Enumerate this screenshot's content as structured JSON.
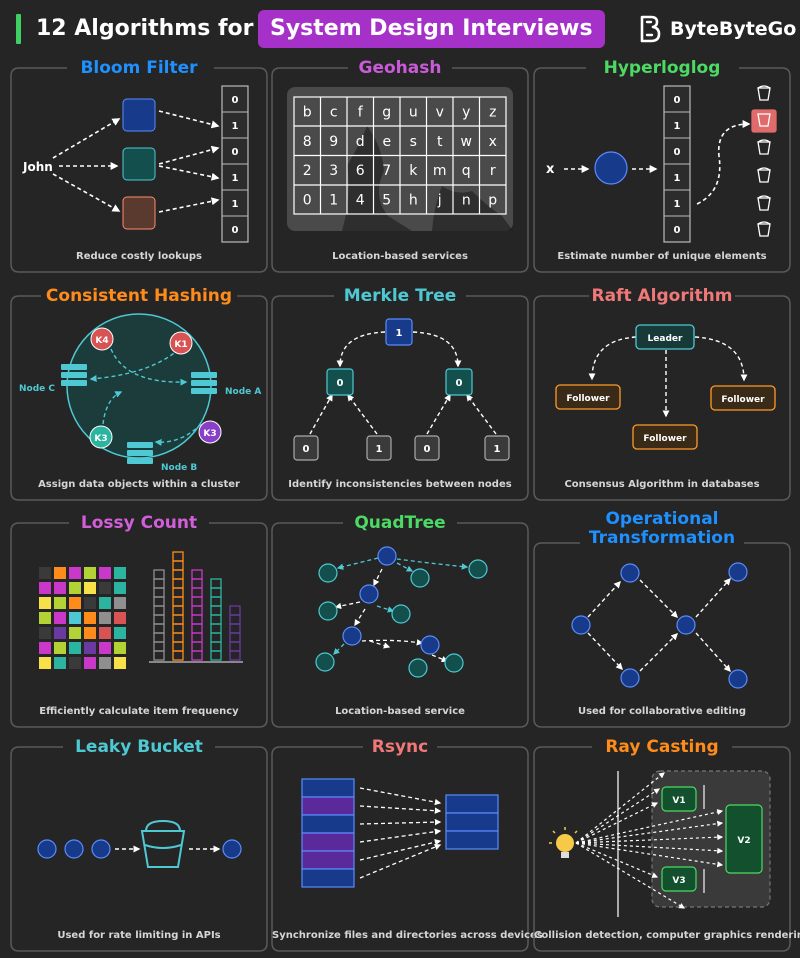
{
  "header": {
    "title_part1": "12 Algorithms for",
    "title_part2": "System Design  Interviews",
    "brand": "ByteByteGo",
    "colors": {
      "accent_bar": "#3fcf62",
      "highlight": "#a531c8"
    }
  },
  "panels": {
    "bloom": {
      "title": "Bloom Filter",
      "caption": "Reduce costly lookups",
      "input": "John",
      "bits": [
        "0",
        "1",
        "0",
        "1",
        "1",
        "0"
      ],
      "color": "#1e90ff"
    },
    "geohash": {
      "title": "Geohash",
      "caption": "Location-based services",
      "grid": [
        [
          "b",
          "c",
          "f",
          "g",
          "u",
          "v",
          "y",
          "z"
        ],
        [
          "8",
          "9",
          "d",
          "e",
          "s",
          "t",
          "w",
          "x"
        ],
        [
          "2",
          "3",
          "6",
          "7",
          "k",
          "m",
          "q",
          "r"
        ],
        [
          "0",
          "1",
          "4",
          "5",
          "h",
          "j",
          "n",
          "p"
        ]
      ],
      "color": "#c95bd9"
    },
    "hll": {
      "title": "Hyperloglog",
      "caption": "Estimate number of unique elements",
      "input": "x",
      "bits": [
        "0",
        "1",
        "0",
        "1",
        "1",
        "0"
      ],
      "color": "#4cd964"
    },
    "consistent": {
      "title": "Consistent Hashing",
      "caption": "Assign data objects within a cluster",
      "keys": [
        "K4",
        "K1",
        "K3",
        "K3"
      ],
      "nodes": [
        "Node C",
        "Node A",
        "Node B"
      ],
      "color": "#ff8c1a"
    },
    "merkle": {
      "title": "Merkle Tree",
      "caption": "Identify inconsistencies between nodes",
      "root": "1",
      "mids": [
        "0",
        "0"
      ],
      "leaves": [
        "0",
        "1",
        "0",
        "1"
      ],
      "color": "#4ec9d3"
    },
    "raft": {
      "title": "Raft Algorithm",
      "caption": "Consensus Algorithm in databases",
      "leader": "Leader",
      "followers": [
        "Follower",
        "Follower",
        "Follower"
      ],
      "color": "#f07878"
    },
    "lossy": {
      "title": "Lossy Count",
      "caption": "Efficiently calculate item frequency",
      "color": "#d25fd9"
    },
    "quadtree": {
      "title": "QuadTree",
      "caption": "Location-based service",
      "color": "#4cd964"
    },
    "ot": {
      "title_line1": "Operational",
      "title_line2": "Transformation",
      "caption": "Used for collaborative editing",
      "color": "#1e90ff"
    },
    "leaky": {
      "title": "Leaky Bucket",
      "caption": "Used for rate limiting in APIs",
      "color": "#4ec9d3"
    },
    "rsync": {
      "title": "Rsync",
      "caption": "Synchronize files and directories across devices",
      "color": "#f07878"
    },
    "ray": {
      "title": "Ray Casting",
      "caption": "Collision detection, computer graphics rendering",
      "labels": [
        "V1",
        "V2",
        "V3"
      ],
      "color": "#ff8c1a"
    }
  }
}
